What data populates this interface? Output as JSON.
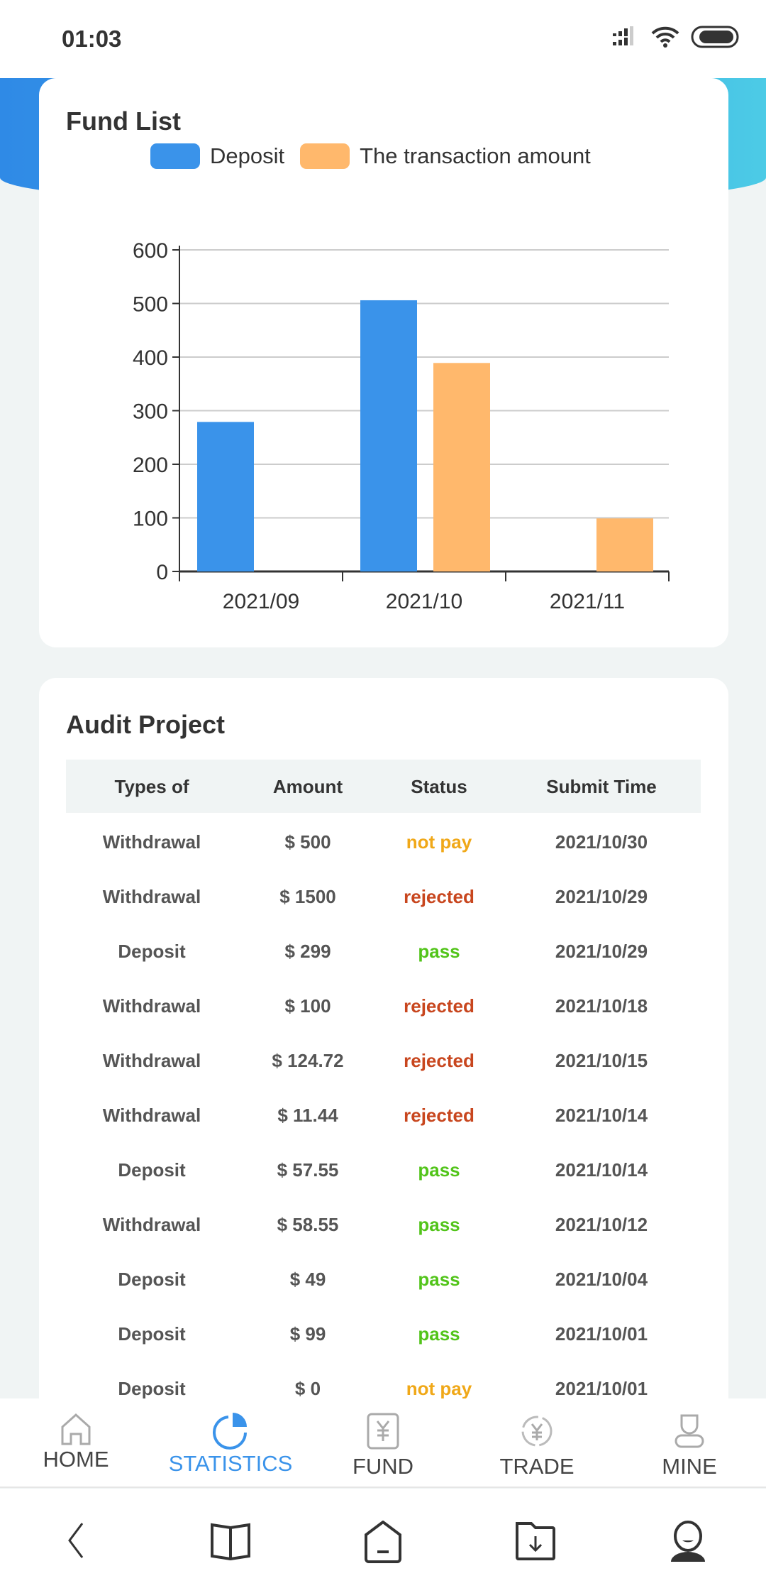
{
  "status_bar": {
    "time": "01:03"
  },
  "fund_list": {
    "title": "Fund List"
  },
  "chart_data": {
    "type": "bar",
    "categories": [
      "2021/09",
      "2021/10",
      "2021/11"
    ],
    "series": [
      {
        "name": "Deposit",
        "values": [
          279,
          506,
          0
        ],
        "color": "#3a93ea"
      },
      {
        "name": "The transaction amount",
        "values": [
          0,
          389,
          99
        ],
        "color": "#ffb86c"
      }
    ],
    "yticks": [
      0,
      100,
      200,
      300,
      400,
      500,
      600
    ],
    "ylim": [
      0,
      600
    ],
    "grid": true,
    "legend": "top"
  },
  "audit": {
    "title": "Audit Project",
    "columns": [
      "Types of",
      "Amount",
      "Status",
      "Submit Time"
    ],
    "rows": [
      [
        "Withdrawal",
        "$ 500",
        "not pay",
        "2021/10/30"
      ],
      [
        "Withdrawal",
        "$ 1500",
        "rejected",
        "2021/10/29"
      ],
      [
        "Deposit",
        "$ 299",
        "pass",
        "2021/10/29"
      ],
      [
        "Withdrawal",
        "$ 100",
        "rejected",
        "2021/10/18"
      ],
      [
        "Withdrawal",
        "$ 124.72",
        "rejected",
        "2021/10/15"
      ],
      [
        "Withdrawal",
        "$ 11.44",
        "rejected",
        "2021/10/14"
      ],
      [
        "Deposit",
        "$ 57.55",
        "pass",
        "2021/10/14"
      ],
      [
        "Withdrawal",
        "$ 58.55",
        "pass",
        "2021/10/12"
      ],
      [
        "Deposit",
        "$ 49",
        "pass",
        "2021/10/04"
      ],
      [
        "Deposit",
        "$ 99",
        "pass",
        "2021/10/01"
      ],
      [
        "Deposit",
        "$ 0",
        "not pay",
        "2021/10/01"
      ]
    ],
    "status_colors": {
      "not pay": "#f0a818",
      "rejected": "#c8461e",
      "pass": "#52c41a"
    }
  },
  "tabs": [
    {
      "label": "HOME",
      "icon": "home-icon"
    },
    {
      "label": "STATISTICS",
      "icon": "pie-chart-icon",
      "active": true
    },
    {
      "label": "FUND",
      "icon": "yen-document-icon"
    },
    {
      "label": "TRADE",
      "icon": "yen-exchange-icon"
    },
    {
      "label": "MINE",
      "icon": "user-icon"
    }
  ],
  "accent": "#3a93ea"
}
